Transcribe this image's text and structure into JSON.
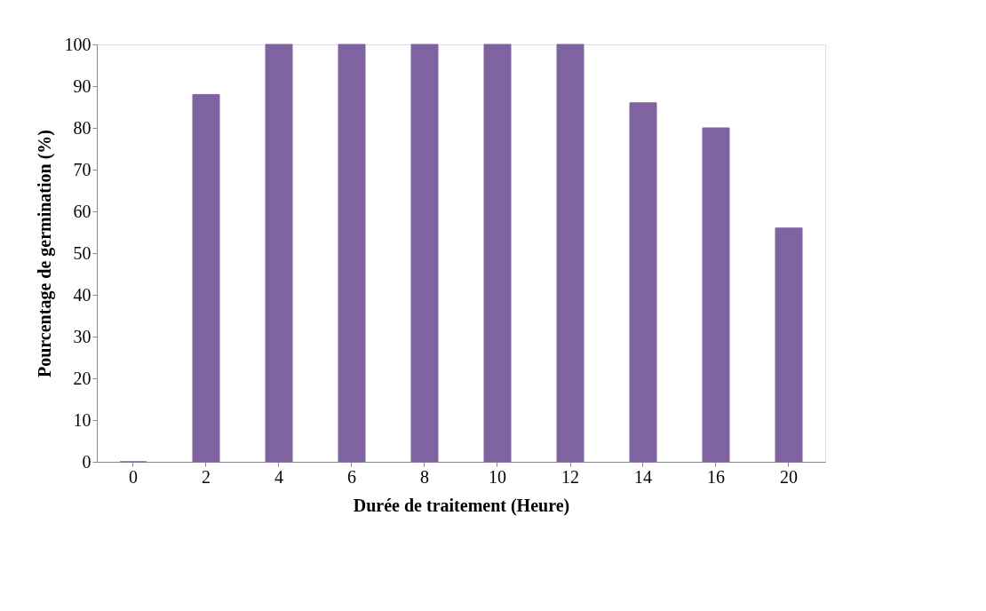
{
  "chart_data": {
    "type": "bar",
    "xlabel": "Durée de traitement (Heure)",
    "ylabel": "Pourcentage de germination (%)",
    "categories": [
      "0",
      "2",
      "4",
      "6",
      "8",
      "10",
      "12",
      "14",
      "16",
      "20"
    ],
    "values": [
      0,
      88,
      100,
      100,
      100,
      100,
      100,
      86,
      80,
      56
    ],
    "color": "#8064a2",
    "ylim": [
      0,
      100
    ],
    "yticks": [
      0,
      10,
      20,
      30,
      40,
      50,
      60,
      70,
      80,
      90,
      100
    ],
    "grid": false
  }
}
